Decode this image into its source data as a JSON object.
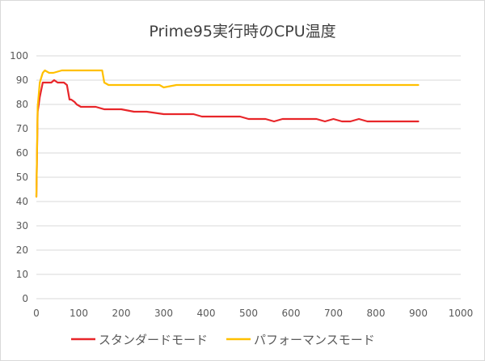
{
  "chart_data": {
    "type": "line",
    "title": "Prime95実行時のCPU温度",
    "xlabel": "",
    "ylabel": "",
    "xlim": [
      0,
      1000
    ],
    "ylim": [
      0,
      100
    ],
    "x_ticks": [
      "0",
      "100",
      "200",
      "300",
      "400",
      "500",
      "600",
      "700",
      "800",
      "900",
      "1000"
    ],
    "y_ticks": [
      "0",
      "10",
      "20",
      "30",
      "40",
      "50",
      "60",
      "70",
      "80",
      "90",
      "100"
    ],
    "grid": "horizontal",
    "legend_position": "bottom",
    "series": [
      {
        "name": "スタンダードモード",
        "color": "#e8262a",
        "x": [
          0,
          3,
          8,
          15,
          25,
          35,
          42,
          50,
          58,
          65,
          72,
          78,
          82,
          90,
          95,
          105,
          120,
          140,
          160,
          180,
          200,
          230,
          260,
          300,
          320,
          350,
          370,
          390,
          420,
          450,
          480,
          500,
          520,
          540,
          560,
          580,
          600,
          620,
          640,
          660,
          680,
          700,
          720,
          740,
          760,
          780,
          790,
          800,
          830,
          860,
          900
        ],
        "y": [
          42,
          77,
          83,
          89,
          89,
          89,
          90,
          89,
          89,
          89,
          88,
          82,
          82,
          81,
          80,
          79,
          79,
          79,
          78,
          78,
          78,
          77,
          77,
          76,
          76,
          76,
          76,
          75,
          75,
          75,
          75,
          74,
          74,
          74,
          73,
          74,
          74,
          74,
          74,
          74,
          73,
          74,
          73,
          73,
          74,
          73,
          73,
          73,
          73,
          73,
          73
        ]
      },
      {
        "name": "パフォーマンスモード",
        "color": "#ffc000",
        "x": [
          0,
          3,
          8,
          15,
          20,
          30,
          40,
          60,
          80,
          100,
          120,
          140,
          155,
          160,
          170,
          180,
          200,
          230,
          260,
          290,
          300,
          330,
          360,
          400,
          430,
          450,
          500,
          550,
          600,
          640,
          660,
          700,
          740,
          780,
          820,
          860,
          900
        ],
        "y": [
          42,
          79,
          89,
          93,
          94,
          93,
          93,
          94,
          94,
          94,
          94,
          94,
          94,
          89,
          88,
          88,
          88,
          88,
          88,
          88,
          87,
          88,
          88,
          88,
          88,
          88,
          88,
          88,
          88,
          88,
          88,
          88,
          88,
          88,
          88,
          88,
          88
        ]
      }
    ]
  }
}
